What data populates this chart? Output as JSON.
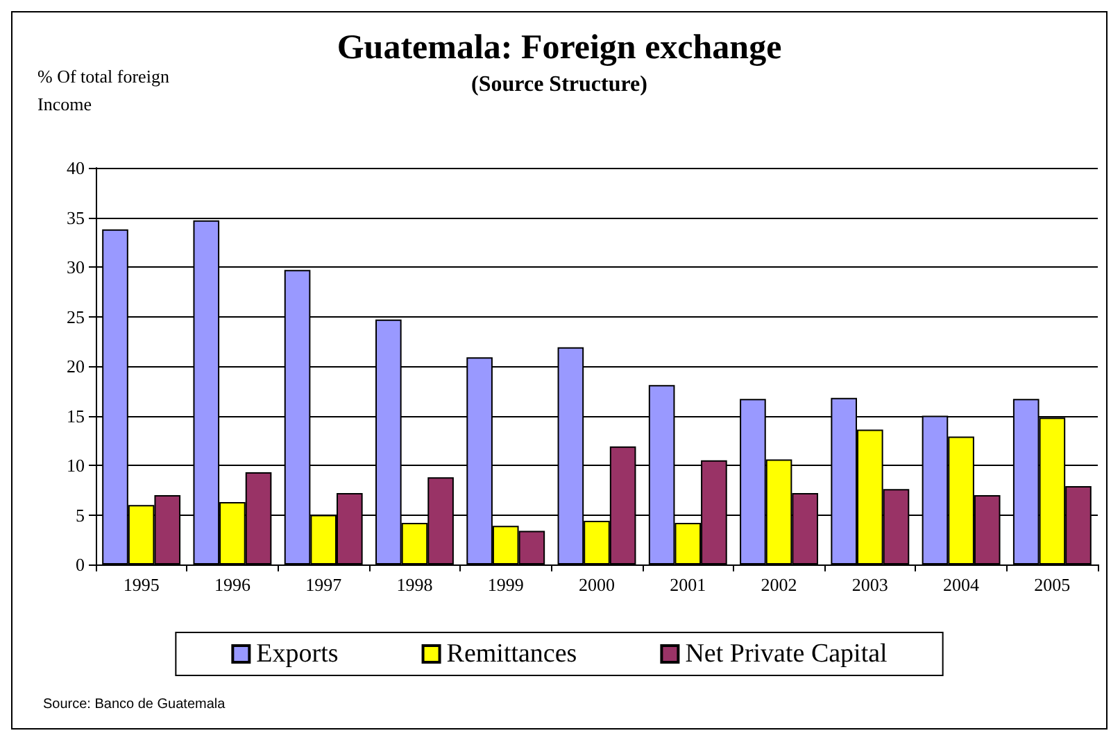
{
  "chart_data": {
    "type": "bar",
    "title": "Guatemala: Foreign exchange",
    "subtitle": "(Source Structure)",
    "ylabel": "% Of total foreign Income",
    "annotations": [
      "Source: Banco de Guatemala"
    ],
    "categories": [
      "1995",
      "1996",
      "1997",
      "1998",
      "1999",
      "2000",
      "2001",
      "2002",
      "2003",
      "2004",
      "2005"
    ],
    "series": [
      {
        "name": "Exports",
        "color": "#9999ff",
        "values": [
          33.8,
          34.7,
          29.7,
          24.7,
          20.9,
          21.9,
          18.1,
          16.7,
          16.8,
          15.0,
          16.7
        ]
      },
      {
        "name": "Remittances",
        "color": "#ffff00",
        "values": [
          6.0,
          6.3,
          5.0,
          4.2,
          3.9,
          4.4,
          4.2,
          10.6,
          13.6,
          12.9,
          14.8
        ]
      },
      {
        "name": "Net Private Capital",
        "color": "#993366",
        "values": [
          7.0,
          9.3,
          7.2,
          8.8,
          3.4,
          11.9,
          10.5,
          7.2,
          7.6,
          7.0,
          7.9
        ]
      }
    ],
    "ylim": [
      0,
      40
    ],
    "yticks": [
      0,
      5,
      10,
      15,
      20,
      25,
      30,
      35,
      40
    ],
    "grid": "y",
    "legend": "bottom"
  }
}
